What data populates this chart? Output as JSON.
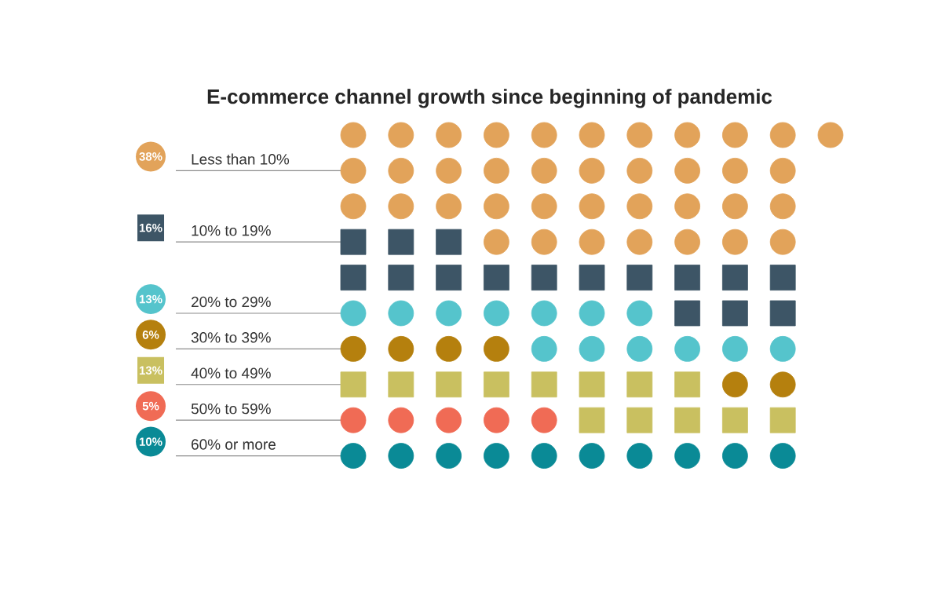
{
  "chart_data": {
    "type": "other",
    "title": "E-commerce channel growth since beginning of pandemic",
    "series": [
      {
        "name": "Less than 10%",
        "color": "#e2a35a",
        "values": [
          38
        ],
        "value_labels": [
          "38%"
        ],
        "marker": "circle"
      },
      {
        "name": "10% to 19%",
        "color": "#3d5566",
        "values": [
          16
        ],
        "value_labels": [
          "16%"
        ],
        "marker": "square"
      },
      {
        "name": "20% to 29%",
        "color": "#55c4cc",
        "values": [
          13
        ],
        "value_labels": [
          "13%"
        ],
        "marker": "circle"
      },
      {
        "name": "30% to 39%",
        "color": "#b5800e",
        "values": [
          6
        ],
        "value_labels": [
          "6%"
        ],
        "marker": "circle"
      },
      {
        "name": "40% to 49%",
        "color": "#c9c060",
        "values": [
          13
        ],
        "value_labels": [
          "13%"
        ],
        "marker": "square"
      },
      {
        "name": "50% to 59%",
        "color": "#f06b55",
        "values": [
          5
        ],
        "value_labels": [
          "5%"
        ],
        "marker": "circle"
      },
      {
        "name": "60% or more",
        "color": "#0a8a96",
        "values": [
          10
        ],
        "value_labels": [
          "10%"
        ],
        "marker": "circle"
      }
    ]
  }
}
